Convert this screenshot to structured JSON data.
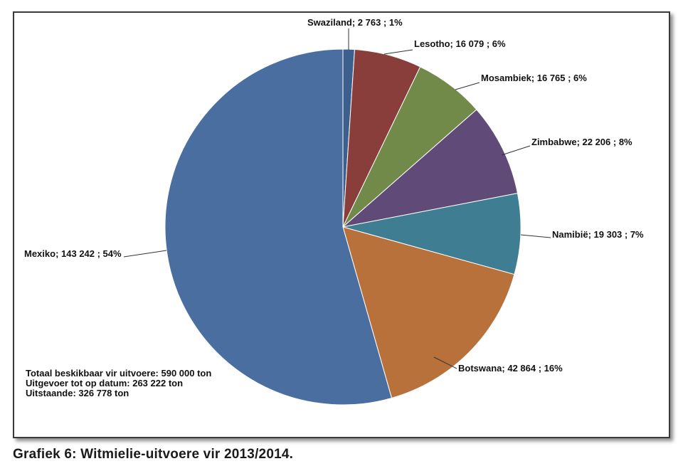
{
  "chart_data": {
    "type": "pie",
    "slices": [
      {
        "name": "Swaziland",
        "value": 2763,
        "percent": 1,
        "label": "Swaziland;  2 763 ; 1%",
        "color": "#3d5f8e"
      },
      {
        "name": "Lesotho",
        "value": 16079,
        "percent": 6,
        "label": "Lesotho;  16 079 ; 6%",
        "color": "#893e3c"
      },
      {
        "name": "Mosambiek",
        "value": 16765,
        "percent": 6,
        "label": "Mosambiek;  16 765 ; 6%",
        "color": "#718a4a"
      },
      {
        "name": "Zimbabwe",
        "value": 22206,
        "percent": 8,
        "label": "Zimbabwe;  22 206 ; 8%",
        "color": "#604a78"
      },
      {
        "name": "Namibië",
        "value": 19303,
        "percent": 7,
        "label": "Namibië;  19 303 ; 7%",
        "color": "#3f7d92"
      },
      {
        "name": "Botswana",
        "value": 42864,
        "percent": 16,
        "label": "Botswana;  42 864 ; 16%",
        "color": "#b8713b"
      },
      {
        "name": "Mexiko",
        "value": 143242,
        "percent": 54,
        "label": "Mexiko;  143 242 ; 54%",
        "color": "#4a6e9f"
      }
    ],
    "legend": "none",
    "annotations": [
      "Totaal beskikbaar vir uitvoere: 590 000 ton",
      "Uitgevoer tot op datum: 263 222 ton",
      "Uitstaande: 326 778 ton"
    ]
  },
  "caption": "Grafiek 6: Witmielie-uitvoere vir 2013/2014."
}
